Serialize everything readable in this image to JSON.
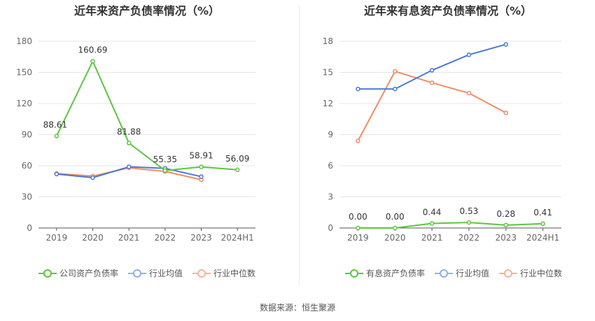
{
  "source_label": "数据来源：恒生聚源",
  "chart_data": [
    {
      "type": "line",
      "title": "近年来资产负债率情况（%）",
      "categories": [
        "2019",
        "2020",
        "2021",
        "2022",
        "2023",
        "2024H1"
      ],
      "ylim": [
        0,
        180
      ],
      "yticks": [
        0,
        30,
        60,
        90,
        120,
        150,
        180
      ],
      "grid": true,
      "legend_position": "bottom",
      "series": [
        {
          "name": "公司资产负债率",
          "color": "#5cc63d",
          "values": [
            88.61,
            160.69,
            81.88,
            55.35,
            58.91,
            56.09
          ],
          "labels": [
            "88.61",
            "160.69",
            "81.88",
            "55.35",
            "58.91",
            "56.09"
          ]
        },
        {
          "name": "行业均值",
          "color": "#4a78d8",
          "values": [
            52.0,
            48.5,
            59.0,
            57.5,
            49.5,
            null
          ]
        },
        {
          "name": "行业中位数",
          "color": "#f08c65",
          "values": [
            52.5,
            50.0,
            58.0,
            54.5,
            46.5,
            null
          ]
        }
      ]
    },
    {
      "type": "line",
      "title": "近年来有息资产负债率情况（%）",
      "categories": [
        "2019",
        "2020",
        "2021",
        "2022",
        "2023",
        "2024H1"
      ],
      "ylim": [
        0,
        18
      ],
      "yticks": [
        0,
        3,
        6,
        9,
        12,
        15,
        18
      ],
      "grid": true,
      "legend_position": "bottom",
      "series": [
        {
          "name": "有息资产负债率",
          "color": "#5cc63d",
          "values": [
            0.0,
            0.0,
            0.44,
            0.53,
            0.28,
            0.41
          ],
          "labels": [
            "0.00",
            "0.00",
            "0.44",
            "0.53",
            "0.28",
            "0.41"
          ]
        },
        {
          "name": "行业均值",
          "color": "#4a78d8",
          "values": [
            13.4,
            13.4,
            15.2,
            16.7,
            17.7,
            null
          ]
        },
        {
          "name": "行业中位数",
          "color": "#f08c65",
          "values": [
            8.4,
            15.1,
            14.0,
            13.0,
            11.1,
            null
          ]
        }
      ]
    }
  ]
}
